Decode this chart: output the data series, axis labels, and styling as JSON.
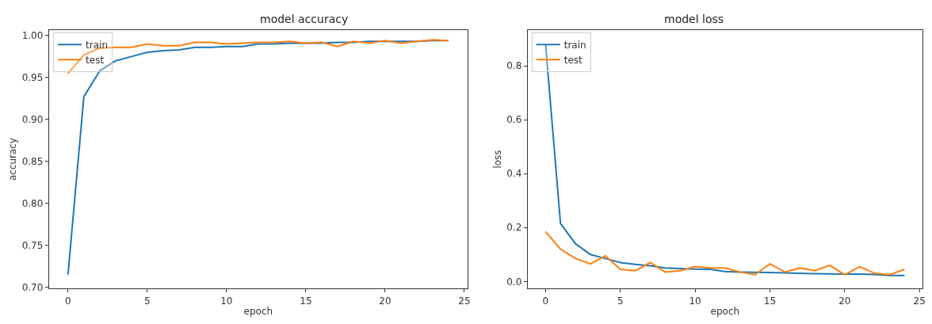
{
  "chart_data": [
    {
      "type": "line",
      "title": "model accuracy",
      "xlabel": "epoch",
      "ylabel": "accuracy",
      "x": [
        0,
        1,
        2,
        3,
        4,
        5,
        6,
        7,
        8,
        9,
        10,
        11,
        12,
        13,
        14,
        15,
        16,
        17,
        18,
        19,
        20,
        21,
        22,
        23,
        24
      ],
      "series": [
        {
          "name": "train",
          "color": "#1f77b4",
          "values": [
            0.715,
            0.927,
            0.958,
            0.97,
            0.975,
            0.98,
            0.982,
            0.983,
            0.986,
            0.986,
            0.987,
            0.987,
            0.99,
            0.99,
            0.991,
            0.991,
            0.991,
            0.992,
            0.992,
            0.993,
            0.993,
            0.993,
            0.993,
            0.994,
            0.994
          ]
        },
        {
          "name": "test",
          "color": "#ff7f0e",
          "values": [
            0.955,
            0.977,
            0.985,
            0.986,
            0.986,
            0.99,
            0.988,
            0.988,
            0.992,
            0.992,
            0.99,
            0.991,
            0.992,
            0.992,
            0.993,
            0.991,
            0.992,
            0.987,
            0.993,
            0.991,
            0.994,
            0.991,
            0.993,
            0.995,
            0.994
          ]
        }
      ],
      "xlim": [
        -1.2,
        25.2
      ],
      "xticks": [
        0,
        5,
        10,
        15,
        20,
        25
      ],
      "ylim": [
        0.698,
        1.007
      ],
      "yticks": [
        {
          "value": 0.7,
          "label": "0.70"
        },
        {
          "value": 0.75,
          "label": "0.75"
        },
        {
          "value": 0.8,
          "label": "0.80"
        },
        {
          "value": 0.85,
          "label": "0.85"
        },
        {
          "value": 0.9,
          "label": "0.90"
        },
        {
          "value": 0.95,
          "label": "0.95"
        },
        {
          "value": 1.0,
          "label": "1.00"
        }
      ],
      "legend": "top left",
      "marker": "none",
      "line_style": "solid"
    },
    {
      "type": "line",
      "title": "model loss",
      "xlabel": "epoch",
      "ylabel": "loss",
      "x": [
        0,
        1,
        2,
        3,
        4,
        5,
        6,
        7,
        8,
        9,
        10,
        11,
        12,
        13,
        14,
        15,
        16,
        17,
        18,
        19,
        20,
        21,
        22,
        23,
        24
      ],
      "series": [
        {
          "name": "train",
          "color": "#1f77b4",
          "values": [
            0.88,
            0.215,
            0.14,
            0.1,
            0.085,
            0.07,
            0.063,
            0.058,
            0.05,
            0.048,
            0.046,
            0.045,
            0.037,
            0.035,
            0.034,
            0.033,
            0.032,
            0.03,
            0.029,
            0.028,
            0.027,
            0.027,
            0.026,
            0.022,
            0.022
          ]
        },
        {
          "name": "test",
          "color": "#ff7f0e",
          "values": [
            0.185,
            0.12,
            0.085,
            0.065,
            0.095,
            0.045,
            0.04,
            0.07,
            0.035,
            0.04,
            0.055,
            0.05,
            0.05,
            0.035,
            0.025,
            0.065,
            0.035,
            0.05,
            0.04,
            0.06,
            0.025,
            0.055,
            0.03,
            0.025,
            0.045
          ]
        }
      ],
      "xlim": [
        -1.2,
        25.2
      ],
      "xticks": [
        0,
        5,
        10,
        15,
        20,
        25
      ],
      "ylim": [
        -0.027,
        0.934
      ],
      "yticks": [
        {
          "value": 0.0,
          "label": "0.0"
        },
        {
          "value": 0.2,
          "label": "0.2"
        },
        {
          "value": 0.4,
          "label": "0.4"
        },
        {
          "value": 0.6,
          "label": "0.6"
        },
        {
          "value": 0.8,
          "label": "0.8"
        }
      ],
      "legend": "top left",
      "marker": "none",
      "line_style": "solid"
    }
  ]
}
